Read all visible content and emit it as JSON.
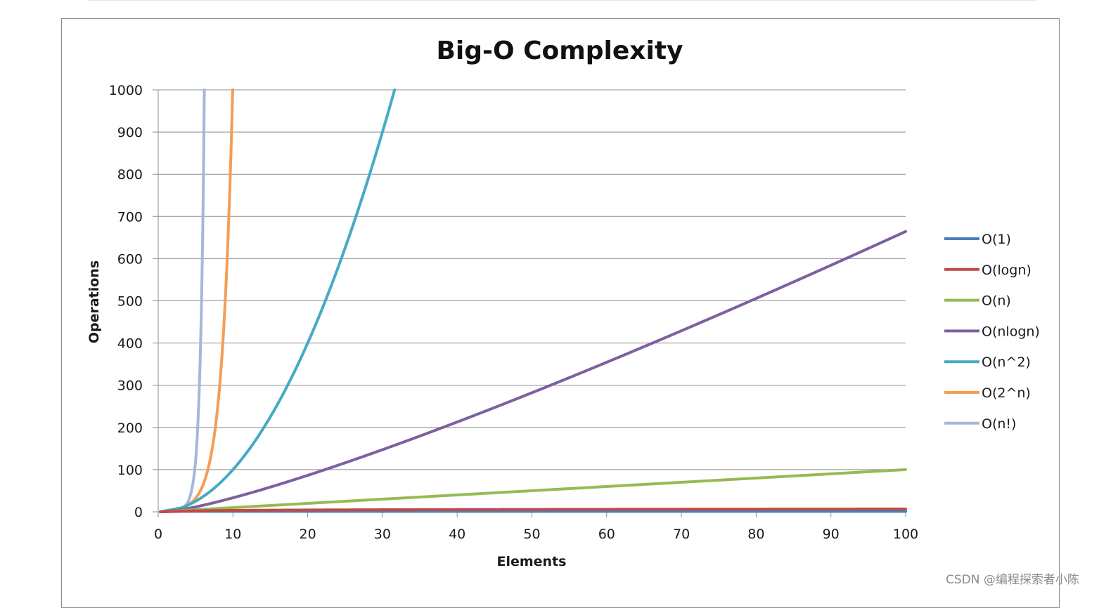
{
  "watermark": "CSDN @编程探索者小陈",
  "chart_data": {
    "type": "line",
    "title": "Big-O Complexity",
    "xlabel": "Elements",
    "ylabel": "Operations",
    "xlim": [
      0,
      100
    ],
    "ylim": [
      0,
      1000
    ],
    "x_ticks": [
      "0",
      "10",
      "20",
      "30",
      "40",
      "50",
      "60",
      "70",
      "80",
      "90",
      "100"
    ],
    "y_ticks": [
      "0",
      "100",
      "200",
      "300",
      "400",
      "500",
      "600",
      "700",
      "800",
      "900",
      "1000"
    ],
    "grid": "horizontal",
    "legend_position": "right",
    "series": [
      {
        "name": "O(1)",
        "color": "#4a7ebb",
        "function": "constant",
        "points": [
          [
            0,
            1
          ],
          [
            100,
            1
          ]
        ]
      },
      {
        "name": "O(logn)",
        "color": "#be4b48",
        "function": "log",
        "points": [
          [
            1,
            0
          ],
          [
            10,
            3.3
          ],
          [
            50,
            5.6
          ],
          [
            100,
            6.6
          ]
        ]
      },
      {
        "name": "O(n)",
        "color": "#98b954",
        "function": "linear",
        "points": [
          [
            0,
            0
          ],
          [
            50,
            50
          ],
          [
            100,
            100
          ]
        ]
      },
      {
        "name": "O(nlogn)",
        "color": "#7d60a0",
        "function": "nlogn",
        "points": [
          [
            1,
            0
          ],
          [
            10,
            33
          ],
          [
            50,
            282
          ],
          [
            100,
            664
          ]
        ]
      },
      {
        "name": "O(n^2)",
        "color": "#46aac5",
        "function": "quadratic",
        "points": [
          [
            0,
            0
          ],
          [
            10,
            100
          ],
          [
            20,
            400
          ],
          [
            30,
            900
          ],
          [
            31.6,
            1000
          ]
        ]
      },
      {
        "name": "O(2^n)",
        "color": "#f59d56",
        "function": "exponential",
        "points": [
          [
            0,
            1
          ],
          [
            5,
            32
          ],
          [
            8,
            256
          ],
          [
            9,
            512
          ],
          [
            10,
            1000
          ]
        ]
      },
      {
        "name": "O(n!)",
        "color": "#a5b8d8",
        "function": "factorial",
        "points": [
          [
            0,
            1
          ],
          [
            3,
            6
          ],
          [
            4,
            24
          ],
          [
            5,
            120
          ],
          [
            6,
            720
          ],
          [
            6.2,
            1000
          ]
        ]
      }
    ]
  }
}
